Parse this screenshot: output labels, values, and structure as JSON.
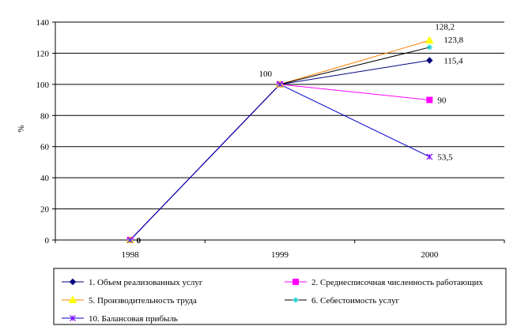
{
  "chart_data": {
    "type": "line",
    "title": "",
    "xlabel": "",
    "ylabel": "%",
    "ylim": [
      0,
      140
    ],
    "yticks": [
      0,
      20,
      40,
      60,
      80,
      100,
      120,
      140
    ],
    "categories": [
      "1998",
      "1999",
      "2000"
    ],
    "grid": "horizontal",
    "legend_position": "bottom",
    "series": [
      {
        "name": "1. Объем реализованных услуг",
        "values": [
          0,
          100,
          115.4
        ],
        "color": "#000080",
        "marker": "diamond"
      },
      {
        "name": "2. Среднесписочная численность работающих",
        "values": [
          0,
          100,
          90
        ],
        "color": "#ff00ff",
        "marker": "square"
      },
      {
        "name": "5. Производительность труда",
        "values": [
          0,
          100,
          128.2
        ],
        "color": "#ff8000",
        "marker": "triangle",
        "marker_color": "#ffff00"
      },
      {
        "name": "6. Себестоимость услуг",
        "values": [
          0,
          100,
          123.8
        ],
        "color": "#000000",
        "marker": "star",
        "marker_color": "#00cccc"
      },
      {
        "name": "10. Балансовая прибыль",
        "values": [
          0,
          100,
          53.5
        ],
        "color": "#0000cc",
        "marker": "x",
        "marker_color": "#8000ff"
      }
    ],
    "data_labels": [
      {
        "text": "0",
        "category": "1998",
        "value": 0
      },
      {
        "text": "100",
        "category": "1999",
        "value": 100
      },
      {
        "text": "128,2",
        "category": "2000",
        "value": 128.2
      },
      {
        "text": "123,8",
        "category": "2000",
        "value": 123.8
      },
      {
        "text": "115,4",
        "category": "2000",
        "value": 115.4
      },
      {
        "text": "90",
        "category": "2000",
        "value": 90
      },
      {
        "text": "53,5",
        "category": "2000",
        "value": 53.5
      }
    ]
  }
}
